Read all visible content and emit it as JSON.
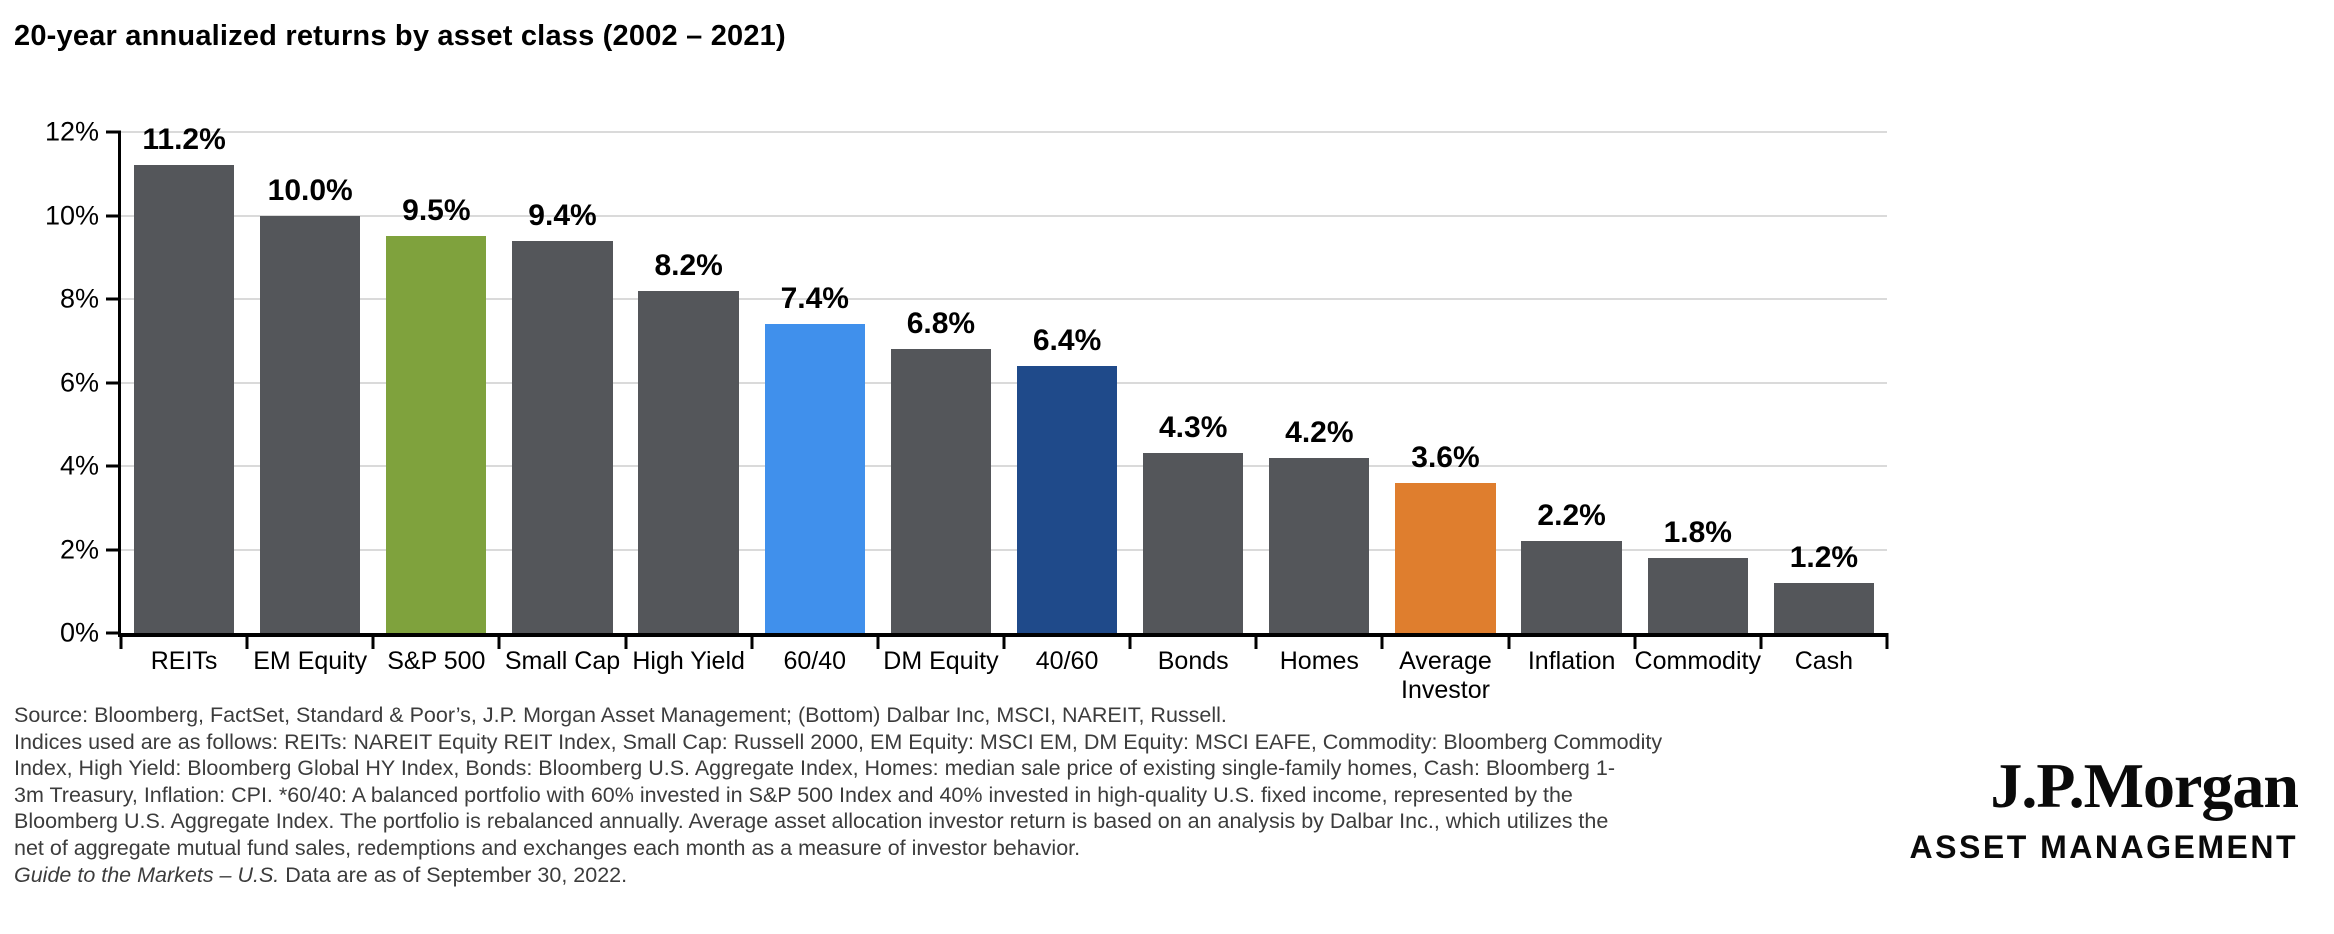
{
  "chart_data": {
    "type": "bar",
    "title": "20-year annualized returns by asset class (2002 – 2021)",
    "categories": [
      "REITs",
      "EM Equity",
      "S&P 500",
      "Small Cap",
      "High Yield",
      "60/40",
      "DM Equity",
      "40/60",
      "Bonds",
      "Homes",
      "Average Investor",
      "Inflation",
      "Commodity",
      "Cash"
    ],
    "values": [
      11.2,
      10.0,
      9.5,
      9.4,
      8.2,
      7.4,
      6.8,
      6.4,
      4.3,
      4.2,
      3.6,
      2.2,
      1.8,
      1.2
    ],
    "value_labels": [
      "11.2%",
      "10.0%",
      "9.5%",
      "9.4%",
      "8.2%",
      "7.4%",
      "6.8%",
      "6.4%",
      "4.3%",
      "4.2%",
      "3.6%",
      "2.2%",
      "1.8%",
      "1.2%"
    ],
    "colors": [
      "#54565A",
      "#54565A",
      "#7FA23D",
      "#54565A",
      "#54565A",
      "#4090EC",
      "#54565A",
      "#1F4A8A",
      "#54565A",
      "#54565A",
      "#DF7E2E",
      "#54565A",
      "#54565A",
      "#54565A"
    ],
    "color_legend": {
      "default_gray": "#54565A",
      "sp500_green": "#7FA23D",
      "sixty_forty_light_blue": "#4090EC",
      "forty_sixty_dark_blue": "#1F4A8A",
      "average_investor_orange": "#DF7E2E"
    },
    "xlabel": "",
    "ylabel": "",
    "ylim": [
      0,
      12
    ],
    "ytick_values": [
      12,
      10,
      8,
      6,
      4,
      2,
      0
    ],
    "ytick_labels": [
      "12%",
      "10%",
      "8%",
      "6%",
      "4%",
      "2%",
      "0%"
    ],
    "grid": "horizontal",
    "legend": "none"
  },
  "footer": {
    "lines": [
      "Source: Bloomberg, FactSet, Standard & Poor’s, J.P. Morgan Asset Management; (Bottom) Dalbar Inc, MSCI, NAREIT, Russell.",
      "Indices used are as follows: REITs: NAREIT Equity REIT Index, Small Cap: Russell 2000, EM Equity: MSCI EM, DM Equity: MSCI EAFE, Commodity: Bloomberg Commodity",
      "Index, High Yield: Bloomberg Global HY Index, Bonds: Bloomberg U.S. Aggregate Index, Homes: median sale price of existing single-family homes, Cash: Bloomberg 1-",
      "3m Treasury, Inflation: CPI. *60/40: A balanced portfolio with 60% invested in S&P 500 Index and 40% invested in high-quality U.S. fixed income, represented by the",
      "Bloomberg U.S. Aggregate Index. The portfolio is rebalanced annually. Average asset allocation investor return is based on an analysis by Dalbar Inc., which utilizes the",
      "net of aggregate mutual fund sales, redemptions and exchanges each month as a measure of investor behavior."
    ],
    "gtm_italic": "Guide to the Markets – U.S.",
    "gtm_rest": " Data are as of September 30, 2022."
  },
  "logo": {
    "brand": "J.P.Morgan",
    "division": "ASSET MANAGEMENT"
  }
}
